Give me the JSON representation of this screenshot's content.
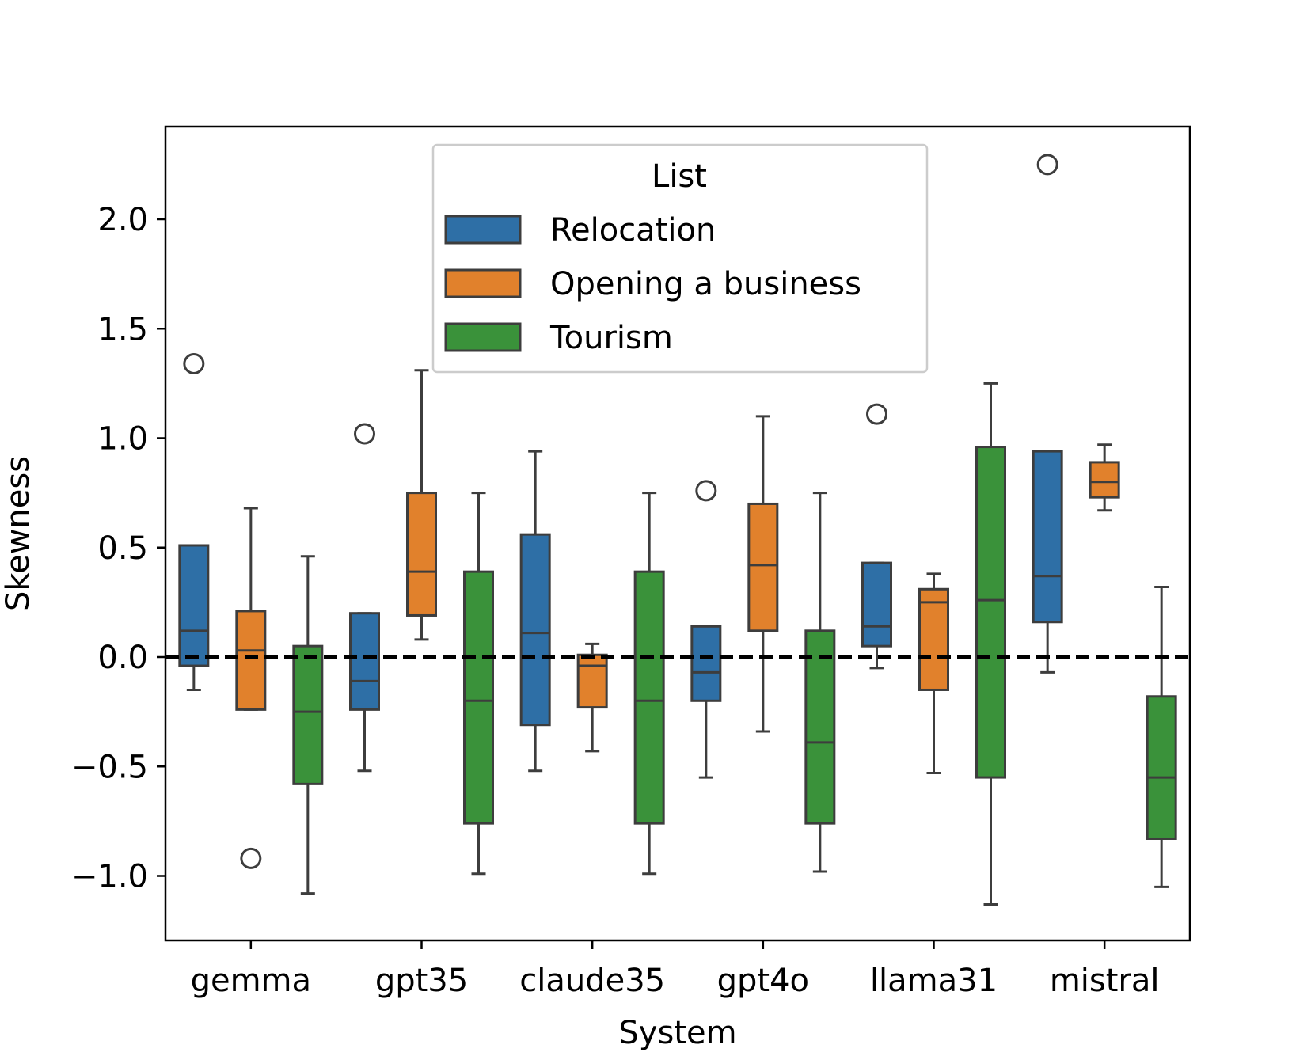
{
  "chart_data": {
    "type": "box",
    "xlabel": "System",
    "ylabel": "Skewness",
    "ylim": [
      -1.3,
      2.43
    ],
    "yticks": [
      -1.0,
      -0.5,
      0.0,
      0.5,
      1.0,
      1.5,
      2.0
    ],
    "ytick_labels": [
      "−1.0",
      "−0.5",
      "0.0",
      "0.5",
      "1.0",
      "1.5",
      "2.0"
    ],
    "categories": [
      "gemma",
      "gpt35",
      "claude35",
      "gpt4o",
      "llama31",
      "mistral"
    ],
    "reference_line": 0.0,
    "legend": {
      "title": "List",
      "position": "upper-center"
    },
    "series": [
      {
        "name": "Relocation",
        "color": "#2e6fa6",
        "boxes": [
          {
            "whisker_low": -0.15,
            "q1": -0.04,
            "median": 0.12,
            "q3": 0.51,
            "whisker_high": 0.51,
            "outliers": [
              1.34
            ]
          },
          {
            "whisker_low": -0.52,
            "q1": -0.24,
            "median": -0.11,
            "q3": 0.2,
            "whisker_high": 0.2,
            "outliers": [
              1.02
            ]
          },
          {
            "whisker_low": -0.52,
            "q1": -0.31,
            "median": 0.11,
            "q3": 0.56,
            "whisker_high": 0.94,
            "outliers": []
          },
          {
            "whisker_low": -0.55,
            "q1": -0.2,
            "median": -0.07,
            "q3": 0.14,
            "whisker_high": 0.14,
            "outliers": [
              0.76
            ]
          },
          {
            "whisker_low": -0.05,
            "q1": 0.05,
            "median": 0.14,
            "q3": 0.43,
            "whisker_high": 0.43,
            "outliers": [
              1.11
            ]
          },
          {
            "whisker_low": -0.07,
            "q1": 0.16,
            "median": 0.37,
            "q3": 0.94,
            "whisker_high": 0.94,
            "outliers": [
              2.25
            ]
          }
        ]
      },
      {
        "name": "Opening a business",
        "color": "#e1812c",
        "boxes": [
          {
            "whisker_low": -0.24,
            "q1": -0.24,
            "median": 0.03,
            "q3": 0.21,
            "whisker_high": 0.68,
            "outliers": [
              -0.92
            ]
          },
          {
            "whisker_low": 0.08,
            "q1": 0.19,
            "median": 0.39,
            "q3": 0.75,
            "whisker_high": 1.31,
            "outliers": []
          },
          {
            "whisker_low": -0.43,
            "q1": -0.23,
            "median": -0.04,
            "q3": 0.01,
            "whisker_high": 0.06,
            "outliers": []
          },
          {
            "whisker_low": -0.34,
            "q1": 0.12,
            "median": 0.42,
            "q3": 0.7,
            "whisker_high": 1.1,
            "outliers": []
          },
          {
            "whisker_low": -0.53,
            "q1": -0.15,
            "median": 0.25,
            "q3": 0.31,
            "whisker_high": 0.38,
            "outliers": []
          },
          {
            "whisker_low": 0.67,
            "q1": 0.73,
            "median": 0.8,
            "q3": 0.89,
            "whisker_high": 0.97,
            "outliers": []
          }
        ]
      },
      {
        "name": "Tourism",
        "color": "#3a923a",
        "boxes": [
          {
            "whisker_low": -1.08,
            "q1": -0.58,
            "median": -0.25,
            "q3": 0.05,
            "whisker_high": 0.46,
            "outliers": []
          },
          {
            "whisker_low": -0.99,
            "q1": -0.76,
            "median": -0.2,
            "q3": 0.39,
            "whisker_high": 0.75,
            "outliers": []
          },
          {
            "whisker_low": -0.99,
            "q1": -0.76,
            "median": -0.2,
            "q3": 0.39,
            "whisker_high": 0.75,
            "outliers": []
          },
          {
            "whisker_low": -0.98,
            "q1": -0.76,
            "median": -0.39,
            "q3": 0.12,
            "whisker_high": 0.75,
            "outliers": []
          },
          {
            "whisker_low": -1.13,
            "q1": -0.55,
            "median": 0.26,
            "q3": 0.96,
            "whisker_high": 1.25,
            "outliers": []
          },
          {
            "whisker_low": -1.05,
            "q1": -0.83,
            "median": -0.55,
            "q3": -0.18,
            "whisker_high": 0.32,
            "outliers": []
          }
        ]
      }
    ]
  }
}
